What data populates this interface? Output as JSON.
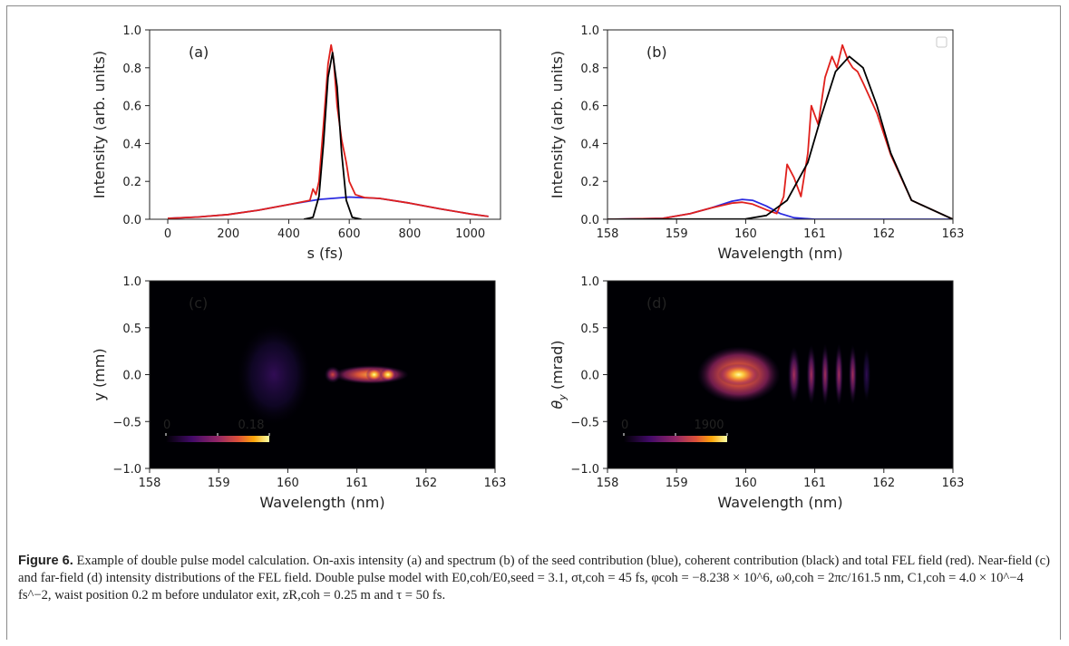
{
  "panels": [
    {
      "id": "a",
      "panel_label": "(a)",
      "xlabel": "s (fs)",
      "ylabel": "Intensity (arb. units)",
      "xticks": [
        "0",
        "200",
        "400",
        "600",
        "800",
        "1000"
      ],
      "yticks": [
        "0.0",
        "0.2",
        "0.4",
        "0.6",
        "0.8",
        "1.0"
      ]
    },
    {
      "id": "b",
      "panel_label": "(b)",
      "xlabel": "Wavelength (nm)",
      "ylabel": "Intensity (arb. units)",
      "xticks": [
        "158",
        "159",
        "160",
        "161",
        "162",
        "163"
      ],
      "yticks": [
        "0.0",
        "0.2",
        "0.4",
        "0.6",
        "0.8",
        "1.0"
      ]
    },
    {
      "id": "c",
      "panel_label": "(c)",
      "xlabel": "Wavelength (nm)",
      "ylabel": "y (mm)",
      "xticks": [
        "158",
        "159",
        "160",
        "161",
        "162",
        "163"
      ],
      "yticks": [
        "−1.0",
        "−0.5",
        "0.0",
        "0.5",
        "1.0"
      ],
      "colorbar_min": "0",
      "colorbar_max": "0.18"
    },
    {
      "id": "d",
      "panel_label": "(d)",
      "xlabel": "Wavelength (nm)",
      "ylabel": "θy (mrad)",
      "xticks": [
        "158",
        "159",
        "160",
        "161",
        "162",
        "163"
      ],
      "yticks": [
        "−1.0",
        "−0.5",
        "0.0",
        "0.5",
        "1.0"
      ],
      "colorbar_min": "0",
      "colorbar_max": "1900"
    }
  ],
  "caption": {
    "label": "Figure 6.",
    "text": "Example of double pulse model calculation. On-axis intensity (a) and spectrum (b) of the seed contribution (blue), coherent contribution (black) and total FEL field (red). Near-field (c) and far-field (d) intensity distributions of the FEL field. Double pulse model with E0,coh/E0,seed = 3.1, σt,coh = 45 fs, φcoh = −8.238 × 10^6, ω0,coh = 2πc/161.5 nm, C1,coh = 4.0 × 10^−4 fs^−2, waist position 0.2 m before undulator exit, zR,coh = 0.25 m and τ = 50 fs."
  },
  "colors": {
    "seed": "#2a2ae0",
    "coherent": "#000000",
    "total": "#e0201c",
    "map_bg": "#000004"
  },
  "chart_data": [
    {
      "type": "line",
      "panel": "a",
      "xlim": [
        -60,
        1100
      ],
      "ylim": [
        0,
        1.0
      ],
      "series": [
        {
          "color": "seed",
          "x": [
            0,
            100,
            200,
            300,
            400,
            500,
            600,
            700,
            800,
            900,
            1000,
            1060
          ],
          "y": [
            0.005,
            0.012,
            0.025,
            0.048,
            0.078,
            0.105,
            0.117,
            0.11,
            0.085,
            0.055,
            0.028,
            0.015
          ]
        },
        {
          "color": "coherent",
          "x": [
            450,
            480,
            500,
            515,
            530,
            545,
            560,
            575,
            590,
            610,
            640
          ],
          "y": [
            0,
            0.01,
            0.12,
            0.4,
            0.75,
            0.88,
            0.7,
            0.35,
            0.1,
            0.01,
            0
          ]
        },
        {
          "color": "total",
          "x": [
            0,
            100,
            200,
            300,
            400,
            470,
            480,
            490,
            500,
            515,
            530,
            540,
            548,
            560,
            575,
            590,
            600,
            620,
            650,
            700,
            800,
            900,
            1000,
            1060
          ],
          "y": [
            0.005,
            0.012,
            0.025,
            0.048,
            0.078,
            0.1,
            0.16,
            0.13,
            0.2,
            0.5,
            0.82,
            0.92,
            0.85,
            0.6,
            0.42,
            0.3,
            0.2,
            0.13,
            0.115,
            0.11,
            0.085,
            0.055,
            0.028,
            0.015
          ]
        }
      ]
    },
    {
      "type": "line",
      "panel": "b",
      "xlim": [
        158,
        163
      ],
      "ylim": [
        0,
        1.0
      ],
      "legend": "top-right (empty)",
      "series": [
        {
          "color": "seed",
          "x": [
            158.0,
            158.8,
            159.2,
            159.5,
            159.8,
            159.95,
            160.1,
            160.3,
            160.5,
            160.7,
            161.0,
            163.0
          ],
          "y": [
            0,
            0.005,
            0.03,
            0.06,
            0.095,
            0.105,
            0.1,
            0.07,
            0.03,
            0.008,
            0,
            0
          ]
        },
        {
          "color": "coherent",
          "x": [
            158.0,
            160.0,
            160.3,
            160.6,
            160.9,
            161.1,
            161.3,
            161.5,
            161.7,
            161.9,
            162.1,
            162.4,
            163.0
          ],
          "y": [
            0,
            0.002,
            0.02,
            0.1,
            0.3,
            0.55,
            0.78,
            0.86,
            0.8,
            0.6,
            0.35,
            0.1,
            0
          ]
        },
        {
          "color": "total",
          "x": [
            158.0,
            158.8,
            159.2,
            159.5,
            159.8,
            159.95,
            160.1,
            160.3,
            160.45,
            160.55,
            160.6,
            160.7,
            160.8,
            160.9,
            160.95,
            161.05,
            161.15,
            161.25,
            161.32,
            161.4,
            161.48,
            161.55,
            161.62,
            161.7,
            161.9,
            162.1,
            162.4,
            163.0
          ],
          "y": [
            0,
            0.005,
            0.03,
            0.06,
            0.085,
            0.09,
            0.08,
            0.05,
            0.03,
            0.12,
            0.29,
            0.22,
            0.12,
            0.35,
            0.6,
            0.5,
            0.75,
            0.86,
            0.8,
            0.92,
            0.84,
            0.8,
            0.78,
            0.72,
            0.56,
            0.34,
            0.1,
            0
          ]
        }
      ]
    },
    {
      "type": "heatmap",
      "panel": "c",
      "xlim": [
        158,
        163
      ],
      "ylim": [
        -1.0,
        1.0
      ],
      "colormap": "inferno",
      "colorbar_range": [
        0,
        0.18
      ],
      "features": [
        {
          "x": 161.2,
          "y": 0.0,
          "sx": 0.55,
          "sy": 0.1,
          "v": 0.75
        },
        {
          "x": 161.25,
          "y": 0.0,
          "sx": 0.12,
          "sy": 0.07,
          "v": 0.95
        },
        {
          "x": 161.45,
          "y": 0.0,
          "sx": 0.12,
          "sy": 0.07,
          "v": 0.95
        },
        {
          "x": 160.65,
          "y": 0.0,
          "sx": 0.12,
          "sy": 0.09,
          "v": 0.55
        },
        {
          "x": 159.8,
          "y": 0.0,
          "sx": 0.55,
          "sy": 0.55,
          "v": 0.14
        }
      ]
    },
    {
      "type": "heatmap",
      "panel": "d",
      "xlim": [
        158,
        163
      ],
      "ylim": [
        -1.0,
        1.0
      ],
      "colormap": "inferno",
      "colorbar_range": [
        0,
        1900
      ],
      "features": [
        {
          "x": 159.9,
          "y": 0.0,
          "sx": 0.6,
          "sy": 0.3,
          "v": 0.75
        },
        {
          "x": 159.9,
          "y": 0.0,
          "sx": 0.3,
          "sy": 0.12,
          "v": 1.0
        },
        {
          "x": 160.7,
          "y": 0.0,
          "sx": 0.09,
          "sy": 0.3,
          "v": 0.3
        },
        {
          "x": 160.95,
          "y": 0.0,
          "sx": 0.07,
          "sy": 0.32,
          "v": 0.33
        },
        {
          "x": 161.15,
          "y": 0.0,
          "sx": 0.06,
          "sy": 0.33,
          "v": 0.33
        },
        {
          "x": 161.35,
          "y": 0.0,
          "sx": 0.06,
          "sy": 0.33,
          "v": 0.3
        },
        {
          "x": 161.55,
          "y": 0.0,
          "sx": 0.06,
          "sy": 0.32,
          "v": 0.25
        },
        {
          "x": 161.75,
          "y": 0.0,
          "sx": 0.06,
          "sy": 0.3,
          "v": 0.18
        }
      ]
    }
  ]
}
